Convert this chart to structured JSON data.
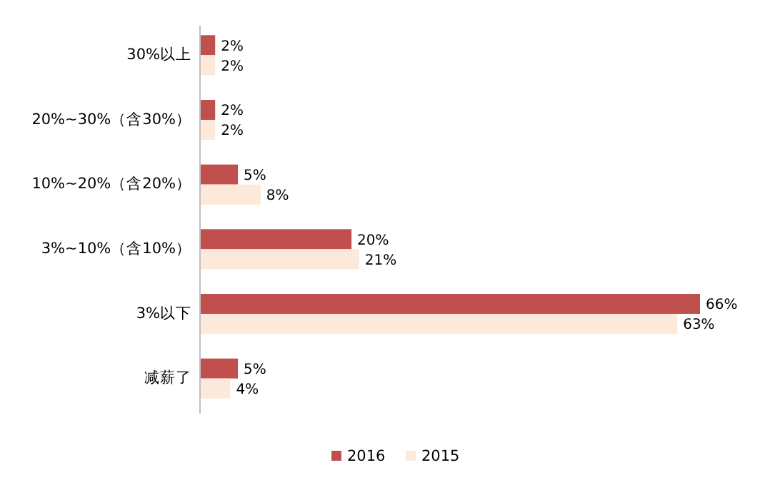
{
  "chart_data": {
    "type": "bar",
    "orientation": "horizontal",
    "legend": "bottom",
    "categories": [
      "30%以上",
      "20%~30%（含30%）",
      "10%~20%（含20%）",
      "3%~10%（含10%）",
      "3%以下",
      "减薪了"
    ],
    "series": [
      {
        "name": "2016",
        "color": "#c0504d",
        "values": [
          2,
          2,
          5,
          20,
          66,
          5
        ],
        "value_labels": [
          "2%",
          "2%",
          "5%",
          "20%",
          "66%",
          "5%"
        ]
      },
      {
        "name": "2015",
        "color": "#fde9d9",
        "values": [
          2,
          2,
          8,
          21,
          63,
          4
        ],
        "value_labels": [
          "2%",
          "2%",
          "8%",
          "21%",
          "63%",
          "4%"
        ]
      }
    ]
  }
}
